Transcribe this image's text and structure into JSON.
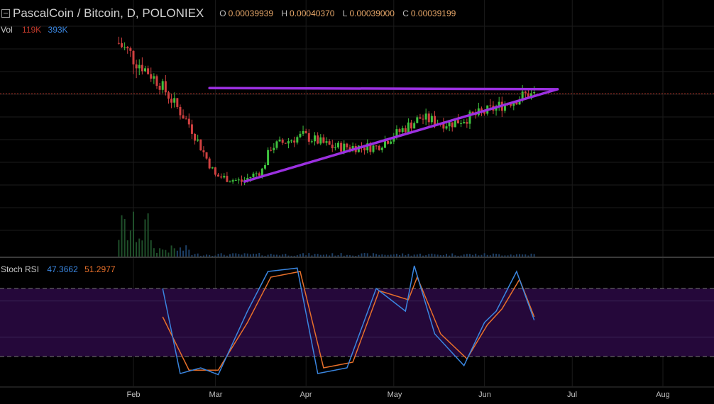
{
  "header": {
    "symbol": "PascalCoin / Bitcoin, D, POLONIEX",
    "open_label": "O",
    "open": "0.00039939",
    "high_label": "H",
    "high": "0.00040370",
    "low_label": "L",
    "low": "0.00039000",
    "close_label": "C",
    "close": "0.00039199"
  },
  "volume": {
    "label": "Vol",
    "value1": "119K",
    "value2": "393K"
  },
  "stoch": {
    "label": "Stoch RSI",
    "k": "47.3662",
    "d": "51.2977"
  },
  "colors": {
    "background": "#000000",
    "up": "#3ec13e",
    "down": "#d04040",
    "trendline": "#9b30e0",
    "stoch_k": "#3a86e0",
    "stoch_d": "#e8702a",
    "stoch_band": "#25083a"
  },
  "chart_data": {
    "type": "candlestick",
    "x_ticks": [
      "Feb",
      "Mar",
      "Apr",
      "May",
      "Jun",
      "Jul",
      "Aug"
    ],
    "price_series": [
      {
        "date": "Jan 27",
        "close": 0.00048
      },
      {
        "date": "Feb 10",
        "close": 0.00041
      },
      {
        "date": "Feb 20",
        "close": 0.00034
      },
      {
        "date": "Mar 1",
        "close": 0.00025
      },
      {
        "date": "Mar 10",
        "close": 0.00024
      },
      {
        "date": "Mar 17",
        "close": 0.00026
      },
      {
        "date": "Mar 20",
        "close": 0.0003
      },
      {
        "date": "Mar 31",
        "close": 0.00032
      },
      {
        "date": "Apr 10",
        "close": 0.0003
      },
      {
        "date": "Apr 25",
        "close": 0.0003
      },
      {
        "date": "May 10",
        "close": 0.00035
      },
      {
        "date": "May 20",
        "close": 0.00034
      },
      {
        "date": "Jun 1",
        "close": 0.00036
      },
      {
        "date": "Jun 15",
        "close": 0.00039
      }
    ],
    "last_close": 0.00039199,
    "trendlines": [
      {
        "name": "resistance",
        "points": [
          [
            "Feb 27",
            0.000402
          ],
          [
            "Jun 26",
            0.0004
          ]
        ]
      },
      {
        "name": "support",
        "points": [
          [
            "Mar 11",
            0.00024
          ],
          [
            "Jun 26",
            0.0004
          ]
        ]
      }
    ],
    "stoch_rsi": {
      "levels": [
        80,
        20
      ],
      "k_points": [
        [
          "Feb 11",
          80
        ],
        [
          "Feb 17",
          5
        ],
        [
          "Feb 24",
          10
        ],
        [
          "Mar 2",
          4
        ],
        [
          "Mar 12",
          60
        ],
        [
          "Mar 19",
          95
        ],
        [
          "Mar 29",
          98
        ],
        [
          "Apr 5",
          5
        ],
        [
          "Apr 15",
          10
        ],
        [
          "Apr 25",
          80
        ],
        [
          "May 5",
          60
        ],
        [
          "May 8",
          100
        ],
        [
          "May 15",
          40
        ],
        [
          "May 25",
          12
        ],
        [
          "Jun 1",
          50
        ],
        [
          "Jun 5",
          60
        ],
        [
          "Jun 12",
          95
        ],
        [
          "Jun 18",
          52
        ]
      ],
      "d_points": [
        [
          "Feb 11",
          55
        ],
        [
          "Feb 20",
          8
        ],
        [
          "Mar 2",
          8
        ],
        [
          "Mar 12",
          50
        ],
        [
          "Mar 20",
          90
        ],
        [
          "Mar 30",
          95
        ],
        [
          "Apr 7",
          10
        ],
        [
          "Apr 17",
          15
        ],
        [
          "Apr 26",
          78
        ],
        [
          "May 6",
          70
        ],
        [
          "May 9",
          90
        ],
        [
          "May 17",
          40
        ],
        [
          "May 26",
          18
        ],
        [
          "Jun 2",
          48
        ],
        [
          "Jun 7",
          62
        ],
        [
          "Jun 13",
          88
        ],
        [
          "Jun 18",
          55
        ]
      ]
    }
  }
}
